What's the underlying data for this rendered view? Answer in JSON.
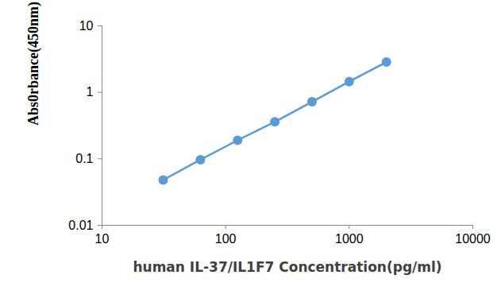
{
  "chart_data": {
    "type": "line",
    "x_label": "human IL-37/IL1F7 Concentration(pg/ml)",
    "y_label": "Abs0rbance(450nm)",
    "x": [
      31.25,
      62.5,
      125,
      250,
      500,
      1000,
      2000
    ],
    "values": [
      0.048,
      0.097,
      0.19,
      0.36,
      0.72,
      1.45,
      2.85
    ],
    "color": "#5b9bd5",
    "marker": "circle",
    "line_style": "solid",
    "log": true,
    "grid": false,
    "xlim": [
      10,
      10000
    ],
    "xticks": [
      10,
      100,
      1000,
      10000
    ],
    "ylim": [
      0.01,
      10
    ],
    "yticks": [
      0.01,
      0.1,
      1,
      10
    ]
  }
}
